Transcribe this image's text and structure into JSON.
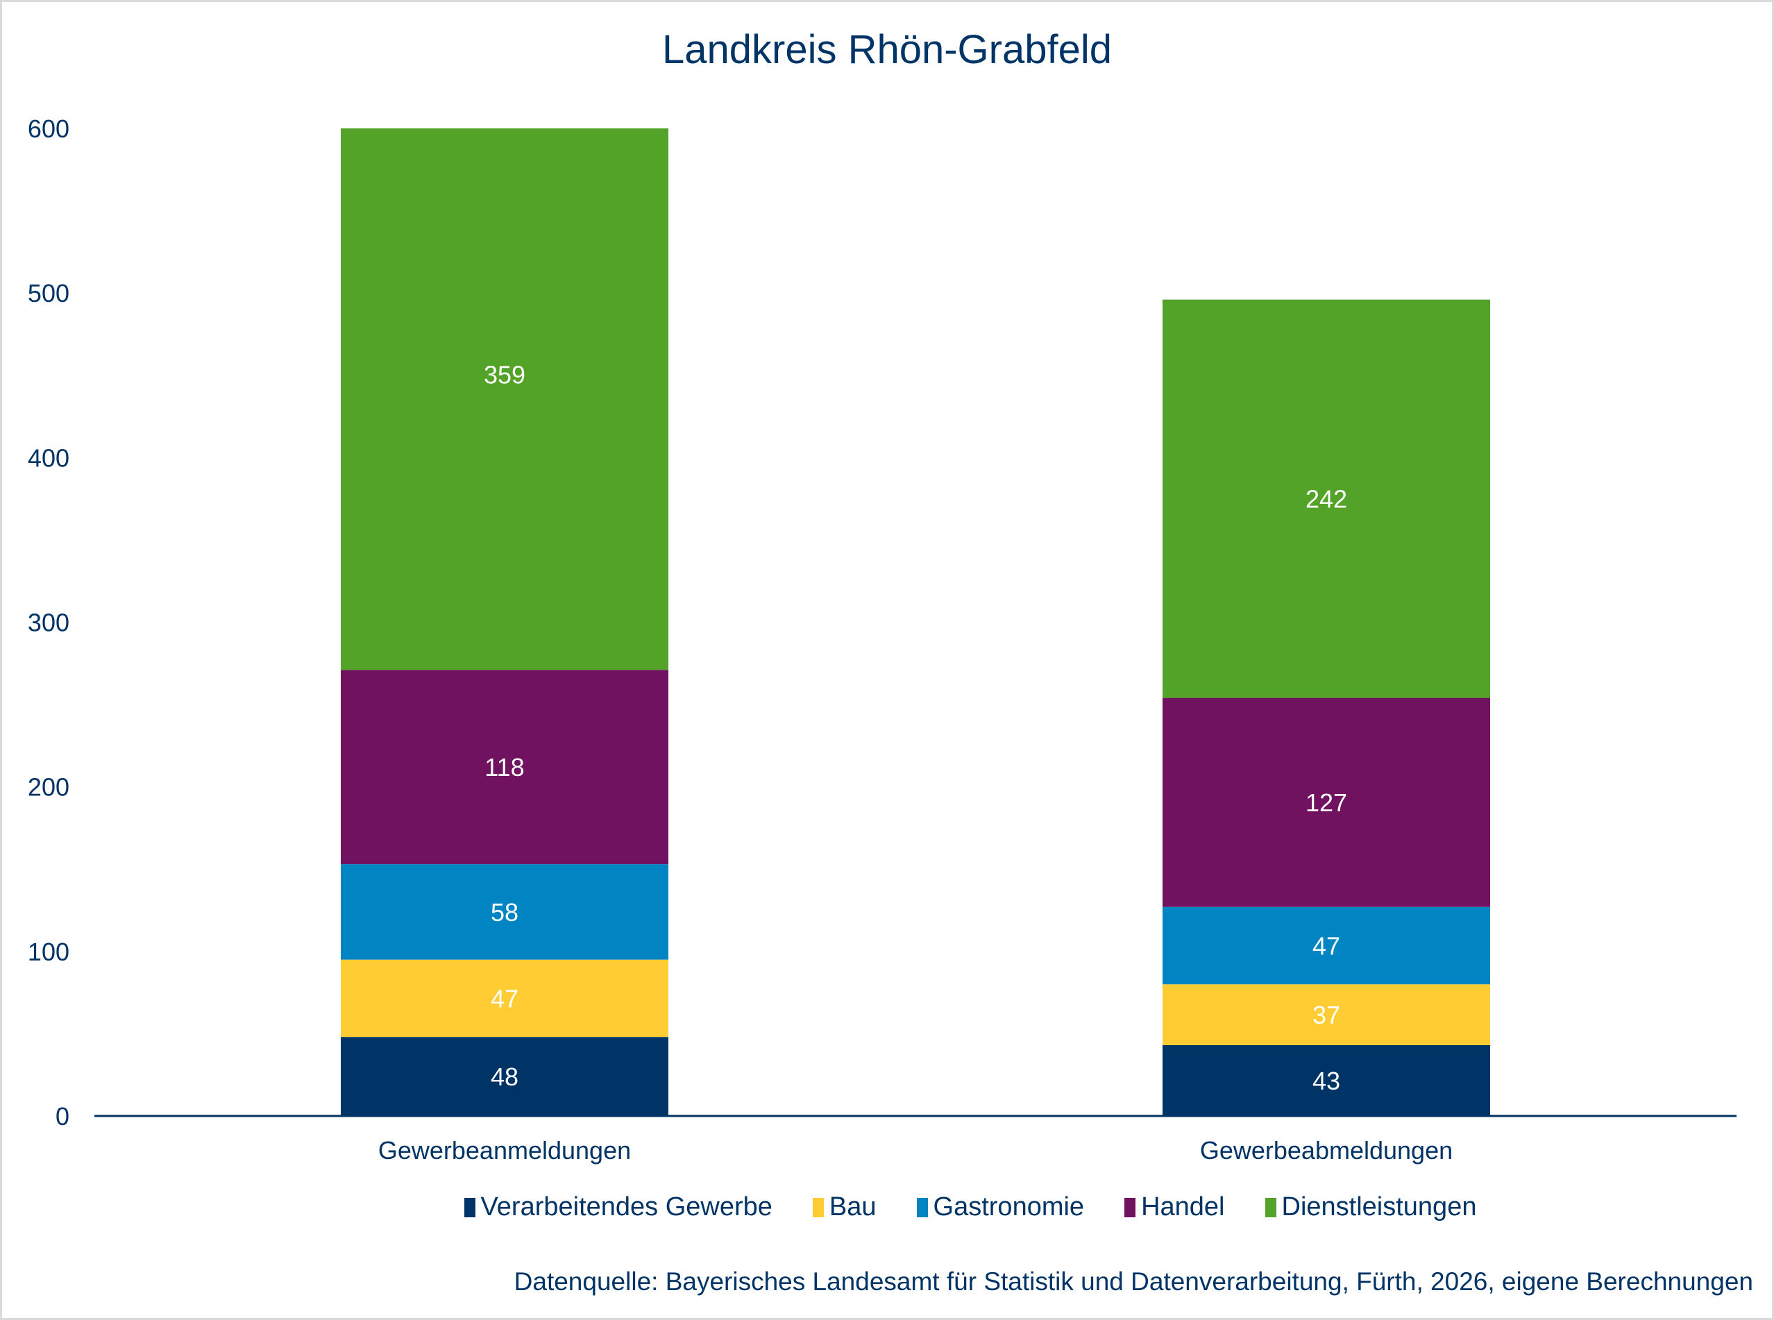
{
  "chart_data": {
    "type": "bar",
    "stacked": true,
    "title": "Landkreis Rhön-Grabfeld",
    "categories": [
      "Gewerbeanmeldungen",
      "Gewerbeabmeldungen"
    ],
    "series": [
      {
        "name": "Verarbeitendes Gewerbe",
        "color": "#003366",
        "values": [
          48,
          43
        ]
      },
      {
        "name": "Bau",
        "color": "#ffcc33",
        "values": [
          47,
          37
        ]
      },
      {
        "name": "Gastronomie",
        "color": "#0085c3",
        "values": [
          58,
          47
        ]
      },
      {
        "name": "Handel",
        "color": "#701260",
        "values": [
          118,
          127
        ]
      },
      {
        "name": "Dienstleistungen",
        "color": "#54a329",
        "values": [
          359,
          242
        ]
      }
    ],
    "ylim": [
      0,
      600
    ],
    "yticks": [
      "0",
      "100",
      "200",
      "300",
      "400",
      "500",
      "600"
    ],
    "grid": false,
    "legend": "bottom",
    "xlabel": "",
    "ylabel": ""
  },
  "source": "Datenquelle: Bayerisches Landesamt für Statistik und Datenverarbeitung, Fürth, 2026, eigene Berechnungen"
}
